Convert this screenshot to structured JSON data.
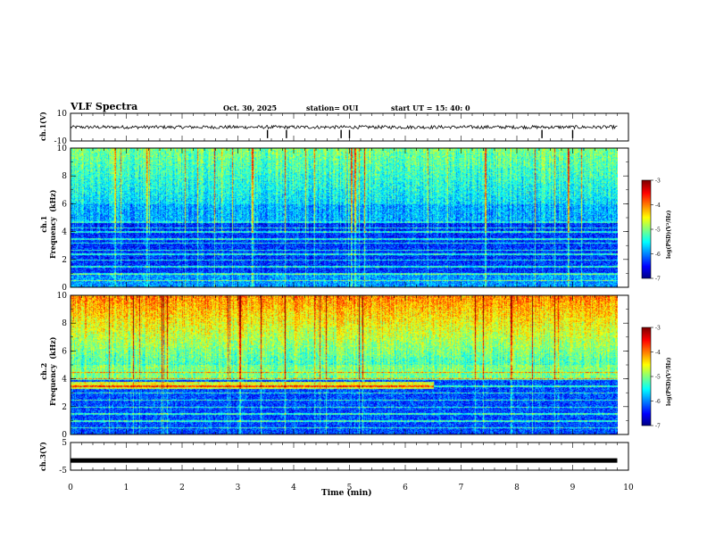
{
  "header": {
    "title": "VLF Spectra",
    "date": "Oct. 30, 2025",
    "station": "station= OUI",
    "start_ut": "start  UT  =  15: 40: 0"
  },
  "chart_data": {
    "type": "heatmap",
    "title": "VLF Spectra",
    "xlabel": "Time  (min)",
    "xlim": [
      0,
      10
    ],
    "x_ticks": [
      "0",
      "1",
      "2",
      "3",
      "4",
      "5",
      "6",
      "7",
      "8",
      "9",
      "10"
    ],
    "data_end_min": 9.8,
    "panels": [
      {
        "id": "ch1-waveform",
        "type": "line",
        "ylabel": "ch.1(V)",
        "ylim": [
          -10,
          10
        ],
        "y_ticks": [
          "10",
          "-10"
        ],
        "baseline": 0,
        "noise_amplitude": 1.2,
        "spikes_min": [
          3.53,
          3.87,
          4.85,
          5.0,
          8.45,
          9.0
        ]
      },
      {
        "id": "ch1-spectrogram",
        "type": "heatmap",
        "ylabel": "ch.1\nFrequency  (kHz)",
        "ylim": [
          0,
          10
        ],
        "y_ticks": [
          "0",
          "2",
          "4",
          "6",
          "8",
          "10"
        ],
        "colorbar": {
          "label": "log(PSD)(V²/Hz)",
          "range": [
            -7,
            -3
          ],
          "ticks": [
            "-3",
            "-4",
            "-5",
            "-6",
            "-7"
          ]
        },
        "description_levels": {
          "low_band_kHz": [
            0,
            6
          ],
          "low_level": -6.3,
          "high_band_kHz": [
            6,
            10
          ],
          "high_level": -5.0
        },
        "hum_lines_kHz": [
          0.5,
          1.0,
          1.5,
          2.0,
          2.4,
          2.7,
          3.2,
          3.5,
          4.0,
          4.3,
          4.7
        ]
      },
      {
        "id": "ch2-spectrogram",
        "type": "heatmap",
        "ylabel": "ch.2\nFrequency  (kHz)",
        "ylim": [
          0,
          10
        ],
        "y_ticks": [
          "0",
          "2",
          "4",
          "6",
          "8",
          "10"
        ],
        "colorbar": {
          "label": "log(PSD)(V²/Hz)",
          "range": [
            -7,
            -3
          ],
          "ticks": [
            "-3",
            "-4",
            "-5",
            "-6",
            "-7"
          ]
        },
        "description_levels": {
          "low_band_kHz": [
            0,
            4
          ],
          "low_level": -6.2,
          "high_band_kHz": [
            5,
            10
          ],
          "high_level": -4.0
        },
        "band_3_5kHz_until_min": 6.5,
        "hum_lines_kHz": [
          0.5,
          1.0,
          1.5,
          2.0,
          2.5,
          3.0,
          3.5,
          4.0,
          4.5
        ]
      },
      {
        "id": "ch3-waveform",
        "type": "line",
        "ylabel": "ch.3(V)",
        "ylim": [
          -5,
          5
        ],
        "y_ticks": [
          "5",
          "-5"
        ],
        "baseline": -1.5,
        "noise_amplitude": 0.3
      }
    ],
    "colors": [
      "#00007f",
      "#0000ff",
      "#007fff",
      "#00ffff",
      "#7fff7f",
      "#ffff00",
      "#ff7f00",
      "#ff0000",
      "#7f0000"
    ]
  }
}
